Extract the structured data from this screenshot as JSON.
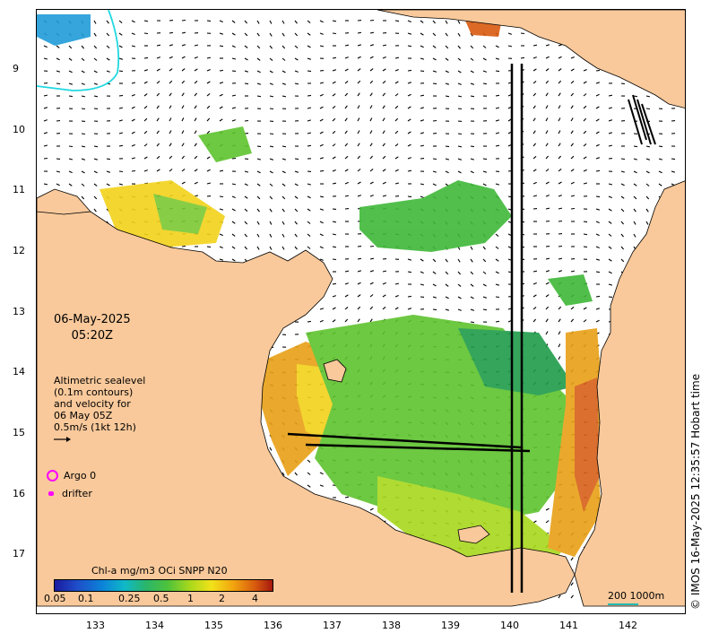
{
  "map": {
    "lat_ticks": [
      "9",
      "10",
      "11",
      "12",
      "13",
      "14",
      "15",
      "16",
      "17"
    ],
    "lon_ticks": [
      "133",
      "134",
      "135",
      "136",
      "137",
      "138",
      "139",
      "140",
      "141",
      "142"
    ],
    "date": "06-May-2025",
    "time": "05:20Z",
    "altimetry_lines": [
      "Altimetric sealevel",
      "(0.1m contours)",
      "and velocity for",
      "06 May 05Z",
      "0.5m/s (1kt 12h)"
    ],
    "legend": {
      "argo": "Argo 0",
      "drifter": "drifter"
    },
    "colorbar": {
      "title": "Chl-a mg/m3 OCi SNPP N20",
      "ticks": [
        "0.05",
        "0.1",
        "0.25",
        "0.5",
        "1",
        "2",
        "4"
      ]
    },
    "scale": "200  1000m",
    "credit": "© IMOS 16-May-2025 12:35:57 Hobart time",
    "colors": {
      "land": "#f9c99b",
      "ocean": "#ffffff",
      "contour": "#1fd8e0",
      "marker": "#ff00ff"
    }
  }
}
